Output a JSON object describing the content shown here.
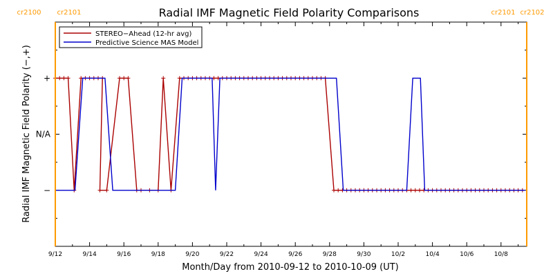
{
  "chart_data": {
    "type": "line",
    "title": "Radial IMF Magnetic Field Polarity Comparisons",
    "xlabel": "Month/Day from 2010-09-12 to 2010-10-09 (UT)",
    "ylabel": "Radial IMF Magnetic Field Polarity (−,+)",
    "x_tick_labels": [
      "9/12",
      "9/14",
      "9/16",
      "9/18",
      "9/20",
      "9/22",
      "9/24",
      "9/26",
      "9/28",
      "9/30",
      "10/2",
      "10/4",
      "10/6",
      "10/8"
    ],
    "x_tick_day": [
      0,
      2,
      4,
      6,
      8,
      10,
      12,
      14,
      16,
      18,
      20,
      22,
      24,
      26
    ],
    "xlim_days": [
      0,
      27.5
    ],
    "y_categories": [
      "−",
      "N/A",
      "+"
    ],
    "y_category_values": [
      -1,
      0,
      1
    ],
    "ylim": [
      -2,
      2
    ],
    "carrington_markers": [
      {
        "day": 0,
        "labels": [
          "cr2100",
          "cr2101"
        ],
        "color": "#ff9900"
      },
      {
        "day": 27.5,
        "labels": [
          "cr2101",
          "cr2102"
        ],
        "color": "#ff9900"
      }
    ],
    "legend_position": "top-left",
    "series": [
      {
        "name": "STEREO−Ahead (12-hr avg)",
        "color": "#aa0000",
        "markers": true,
        "points": [
          [
            0.0,
            1
          ],
          [
            0.25,
            1
          ],
          [
            0.5,
            1
          ],
          [
            0.75,
            1
          ],
          [
            1.1,
            -1
          ],
          [
            1.5,
            1
          ],
          [
            1.75,
            1
          ],
          [
            2.0,
            1
          ],
          [
            2.25,
            1
          ],
          [
            2.5,
            1
          ],
          [
            2.75,
            1
          ],
          [
            2.6,
            -1
          ],
          [
            3.0,
            -1
          ],
          [
            3.75,
            1
          ],
          [
            4.0,
            1
          ],
          [
            4.25,
            1
          ],
          [
            4.75,
            -1
          ],
          [
            5.0,
            -1
          ],
          [
            5.5,
            -1
          ],
          [
            6.0,
            -1
          ],
          [
            6.3,
            1
          ],
          [
            6.75,
            -1
          ],
          [
            7.25,
            1
          ],
          [
            7.5,
            1
          ],
          [
            7.75,
            1
          ],
          [
            8.0,
            1
          ],
          [
            8.25,
            1
          ],
          [
            8.5,
            1
          ],
          [
            8.75,
            1
          ],
          [
            9.0,
            1
          ],
          [
            9.25,
            1
          ],
          [
            9.5,
            1
          ],
          [
            9.75,
            1
          ],
          [
            10.0,
            1
          ],
          [
            10.25,
            1
          ],
          [
            10.5,
            1
          ],
          [
            10.75,
            1
          ],
          [
            11.0,
            1
          ],
          [
            11.25,
            1
          ],
          [
            11.5,
            1
          ],
          [
            11.75,
            1
          ],
          [
            12.0,
            1
          ],
          [
            12.25,
            1
          ],
          [
            12.5,
            1
          ],
          [
            12.75,
            1
          ],
          [
            13.0,
            1
          ],
          [
            13.25,
            1
          ],
          [
            13.5,
            1
          ],
          [
            13.75,
            1
          ],
          [
            14.0,
            1
          ],
          [
            14.25,
            1
          ],
          [
            14.5,
            1
          ],
          [
            14.75,
            1
          ],
          [
            15.0,
            1
          ],
          [
            15.25,
            1
          ],
          [
            15.5,
            1
          ],
          [
            15.75,
            1
          ],
          [
            16.25,
            -1
          ],
          [
            16.5,
            -1
          ],
          [
            16.75,
            -1
          ],
          [
            17.0,
            -1
          ],
          [
            17.25,
            -1
          ],
          [
            17.5,
            -1
          ],
          [
            17.75,
            -1
          ],
          [
            18.0,
            -1
          ],
          [
            18.25,
            -1
          ],
          [
            18.5,
            -1
          ],
          [
            18.75,
            -1
          ],
          [
            19.0,
            -1
          ],
          [
            19.25,
            -1
          ],
          [
            19.5,
            -1
          ],
          [
            19.75,
            -1
          ],
          [
            20.0,
            -1
          ],
          [
            20.25,
            -1
          ],
          [
            20.5,
            -1
          ],
          [
            20.75,
            -1
          ],
          [
            21.0,
            -1
          ],
          [
            21.25,
            -1
          ],
          [
            21.5,
            -1
          ],
          [
            21.75,
            -1
          ],
          [
            22.0,
            -1
          ],
          [
            22.25,
            -1
          ],
          [
            22.5,
            -1
          ],
          [
            22.75,
            -1
          ],
          [
            23.0,
            -1
          ],
          [
            23.25,
            -1
          ],
          [
            23.5,
            -1
          ],
          [
            23.75,
            -1
          ],
          [
            24.0,
            -1
          ],
          [
            24.25,
            -1
          ],
          [
            24.5,
            -1
          ],
          [
            24.75,
            -1
          ],
          [
            25.0,
            -1
          ],
          [
            25.25,
            -1
          ],
          [
            25.5,
            -1
          ],
          [
            25.75,
            -1
          ],
          [
            26.0,
            -1
          ],
          [
            26.25,
            -1
          ],
          [
            26.5,
            -1
          ],
          [
            26.75,
            -1
          ],
          [
            27.0,
            -1
          ],
          [
            27.25,
            -1
          ]
        ]
      },
      {
        "name": "Predictive Science MAS Model",
        "color": "#0000cc",
        "markers": false,
        "points": [
          [
            0.0,
            -1
          ],
          [
            1.15,
            -1
          ],
          [
            1.6,
            1
          ],
          [
            2.9,
            1
          ],
          [
            3.35,
            -1
          ],
          [
            7.0,
            -1
          ],
          [
            7.4,
            1
          ],
          [
            9.15,
            1
          ],
          [
            9.35,
            -1
          ],
          [
            9.6,
            1
          ],
          [
            16.4,
            1
          ],
          [
            16.8,
            -1
          ],
          [
            20.5,
            -1
          ],
          [
            20.85,
            1
          ],
          [
            21.3,
            1
          ],
          [
            21.55,
            -1
          ],
          [
            27.4,
            -1
          ]
        ]
      }
    ]
  }
}
